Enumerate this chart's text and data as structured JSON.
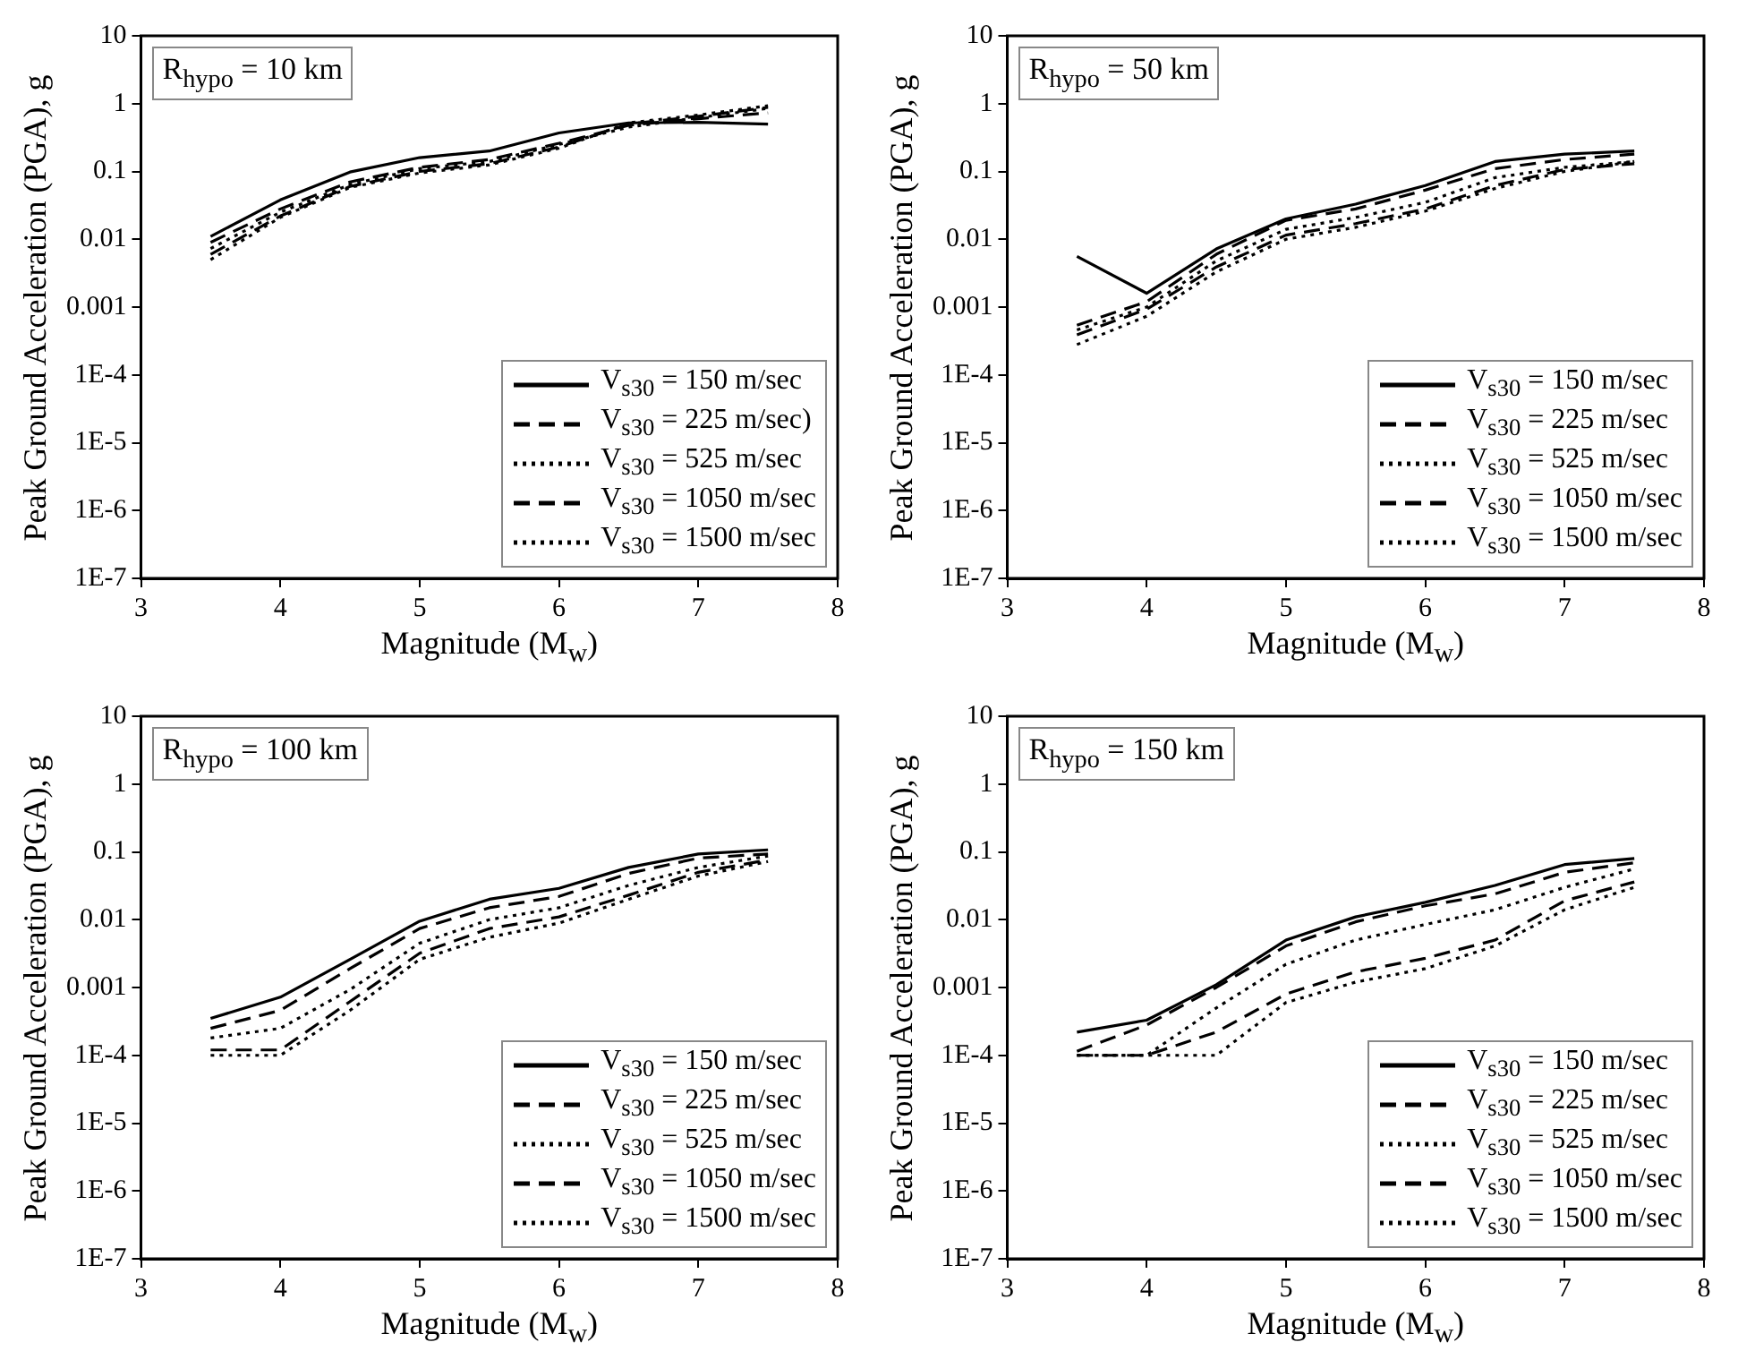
{
  "chart_data": [
    {
      "type": "line",
      "annotations": [
        "R$_{hypo}$ = 10 km"
      ],
      "xlabel": "Magnitude (M$_{w}$)",
      "ylabel": "Peak Ground Acceleration (PGA), g",
      "x": [
        3.5,
        4,
        4.5,
        5,
        5.5,
        6,
        6.5,
        7,
        7.5
      ],
      "xlim": [
        3,
        8
      ],
      "xticks": [
        3,
        4,
        5,
        6,
        7,
        8
      ],
      "log": "y",
      "ylim": [
        1e-07,
        10
      ],
      "yticks": [
        10,
        1,
        0.1,
        0.01,
        0.001,
        {
          "value": 0.0001,
          "label": "1E-4"
        },
        {
          "value": 1e-05,
          "label": "1E-5"
        },
        {
          "value": 1e-06,
          "label": "1E-6"
        },
        {
          "value": 1e-07,
          "label": "1E-7"
        }
      ],
      "grid": false,
      "legend": "bottom right",
      "marker": "none",
      "series": [
        {
          "name": "V$_{s30}$ = 150 m/sec",
          "color": "#000000",
          "line_style": "solid",
          "values": [
            0.011,
            0.038,
            0.098,
            0.16,
            0.2,
            0.37,
            0.52,
            0.53,
            0.5
          ]
        },
        {
          "name": "V$_{s30}$ = 225 m/sec)",
          "color": "#000000",
          "line_style": "dashed",
          "values": [
            0.009,
            0.028,
            0.07,
            0.115,
            0.15,
            0.26,
            0.48,
            0.6,
            0.73
          ]
        },
        {
          "name": "V$_{s30}$ = 525 m/sec",
          "color": "#000000",
          "line_style": "dotted",
          "values": [
            0.0073,
            0.025,
            0.064,
            0.11,
            0.14,
            0.25,
            0.45,
            0.62,
            0.85
          ]
        },
        {
          "name": "V$_{s30}$ = 1050 m/sec",
          "color": "#000000",
          "line_style": "dashed",
          "values": [
            0.006,
            0.022,
            0.06,
            0.1,
            0.13,
            0.23,
            0.5,
            0.65,
            0.88
          ]
        },
        {
          "name": "V$_{s30}$ = 1500 m/sec",
          "color": "#000000",
          "line_style": "dotted",
          "values": [
            0.005,
            0.021,
            0.058,
            0.095,
            0.125,
            0.22,
            0.52,
            0.68,
            0.93
          ]
        }
      ]
    },
    {
      "type": "line",
      "annotations": [
        "R$_{hypo}$ = 50 km"
      ],
      "xlabel": "Magnitude (M$_{w}$)",
      "ylabel": "Peak Ground Acceleration (PGA), g",
      "x": [
        3.5,
        4,
        4.5,
        5,
        5.5,
        6,
        6.5,
        7,
        7.5
      ],
      "xlim": [
        3,
        8
      ],
      "xticks": [
        3,
        4,
        5,
        6,
        7,
        8
      ],
      "log": "y",
      "ylim": [
        1e-07,
        10
      ],
      "yticks": [
        10,
        1,
        0.1,
        0.01,
        0.001,
        {
          "value": 0.0001,
          "label": "1E-4"
        },
        {
          "value": 1e-05,
          "label": "1E-5"
        },
        {
          "value": 1e-06,
          "label": "1E-6"
        },
        {
          "value": 1e-07,
          "label": "1E-7"
        }
      ],
      "grid": false,
      "legend": "bottom right",
      "marker": "none",
      "series": [
        {
          "name": "V$_{s30}$ = 150 m/sec",
          "color": "#000000",
          "line_style": "solid",
          "values": [
            0.0056,
            0.0016,
            0.0072,
            0.02,
            0.033,
            0.062,
            0.14,
            0.18,
            0.2
          ]
        },
        {
          "name": "V$_{s30}$ = 225 m/sec",
          "color": "#000000",
          "line_style": "dashed",
          "values": [
            0.00054,
            0.0012,
            0.006,
            0.019,
            0.028,
            0.053,
            0.11,
            0.15,
            0.18
          ]
        },
        {
          "name": "V$_{s30}$ = 525 m/sec",
          "color": "#000000",
          "line_style": "dotted",
          "values": [
            0.00046,
            0.001,
            0.0048,
            0.014,
            0.021,
            0.035,
            0.081,
            0.115,
            0.14
          ]
        },
        {
          "name": "V$_{s30}$ = 1050 m/sec",
          "color": "#000000",
          "line_style": "dashed",
          "values": [
            0.00039,
            0.00093,
            0.0039,
            0.0115,
            0.017,
            0.028,
            0.062,
            0.107,
            0.13
          ]
        },
        {
          "name": "V$_{s30}$ = 1500 m/sec",
          "color": "#000000",
          "line_style": "dotted",
          "values": [
            0.00028,
            0.00073,
            0.0033,
            0.01,
            0.015,
            0.026,
            0.056,
            0.1,
            0.14
          ]
        }
      ]
    },
    {
      "type": "line",
      "annotations": [
        "R$_{hypo}$ = 100 km"
      ],
      "xlabel": "Magnitude (M$_{w}$)",
      "ylabel": "Peak Ground Acceleration (PGA), g",
      "x": [
        3.5,
        4,
        4.5,
        5,
        5.5,
        6,
        6.5,
        7,
        7.5
      ],
      "xlim": [
        3,
        8
      ],
      "xticks": [
        3,
        4,
        5,
        6,
        7,
        8
      ],
      "log": "y",
      "ylim": [
        1e-07,
        10
      ],
      "yticks": [
        10,
        1,
        0.1,
        0.01,
        0.001,
        {
          "value": 0.0001,
          "label": "1E-4"
        },
        {
          "value": 1e-05,
          "label": "1E-5"
        },
        {
          "value": 1e-06,
          "label": "1E-6"
        },
        {
          "value": 1e-07,
          "label": "1E-7"
        }
      ],
      "grid": false,
      "legend": "bottom right",
      "marker": "none",
      "series": [
        {
          "name": "V$_{s30}$ = 150 m/sec",
          "color": "#000000",
          "line_style": "solid",
          "values": [
            0.00035,
            0.00072,
            0.0026,
            0.0095,
            0.02,
            0.029,
            0.059,
            0.093,
            0.107
          ]
        },
        {
          "name": "V$_{s30}$ = 225 m/sec",
          "color": "#000000",
          "line_style": "dashed",
          "values": [
            0.00025,
            0.00046,
            0.0019,
            0.0074,
            0.015,
            0.022,
            0.048,
            0.081,
            0.093
          ]
        },
        {
          "name": "V$_{s30}$ = 525 m/sec",
          "color": "#000000",
          "line_style": "dotted",
          "values": [
            0.00018,
            0.00025,
            0.00093,
            0.0045,
            0.01,
            0.015,
            0.032,
            0.059,
            0.087
          ]
        },
        {
          "name": "V$_{s30}$ = 1050 m/sec",
          "color": "#000000",
          "line_style": "dashed",
          "values": [
            0.00012,
            0.00012,
            0.00062,
            0.0032,
            0.0074,
            0.011,
            0.023,
            0.05,
            0.076
          ]
        },
        {
          "name": "V$_{s30}$ = 1500 m/sec",
          "color": "#000000",
          "line_style": "dotted",
          "values": [
            0.0001,
            0.0001,
            0.00046,
            0.0026,
            0.0055,
            0.0089,
            0.02,
            0.044,
            0.072
          ]
        }
      ]
    },
    {
      "type": "line",
      "annotations": [
        "R$_{hypo}$ = 150 km"
      ],
      "xlabel": "Magnitude (M$_{w}$)",
      "ylabel": "Peak Ground Acceleration (PGA), g",
      "x": [
        3.5,
        4,
        4.5,
        5,
        5.5,
        6,
        6.5,
        7,
        7.5
      ],
      "xlim": [
        3,
        8
      ],
      "xticks": [
        3,
        4,
        5,
        6,
        7,
        8
      ],
      "log": "y",
      "ylim": [
        1e-07,
        10
      ],
      "yticks": [
        10,
        1,
        0.1,
        0.01,
        0.001,
        {
          "value": 0.0001,
          "label": "1E-4"
        },
        {
          "value": 1e-05,
          "label": "1E-5"
        },
        {
          "value": 1e-06,
          "label": "1E-6"
        },
        {
          "value": 1e-07,
          "label": "1E-7"
        }
      ],
      "grid": false,
      "legend": "bottom right",
      "marker": "none",
      "series": [
        {
          "name": "V$_{s30}$ = 150 m/sec",
          "color": "#000000",
          "line_style": "solid",
          "values": [
            0.00022,
            0.00033,
            0.0011,
            0.005,
            0.011,
            0.018,
            0.032,
            0.065,
            0.08
          ]
        },
        {
          "name": "V$_{s30}$ = 225 m/sec",
          "color": "#000000",
          "line_style": "dashed",
          "values": [
            0.000115,
            0.00028,
            0.001,
            0.0041,
            0.0093,
            0.016,
            0.024,
            0.05,
            0.069
          ]
        },
        {
          "name": "V$_{s30}$ = 525 m/sec",
          "color": "#000000",
          "line_style": "dotted",
          "values": [
            0.0001,
            0.0001,
            0.0005,
            0.0022,
            0.005,
            0.0085,
            0.014,
            0.03,
            0.056
          ]
        },
        {
          "name": "V$_{s30}$ = 1050 m/sec",
          "color": "#000000",
          "line_style": "dashed",
          "values": [
            0.0001,
            0.0001,
            0.00022,
            0.0008,
            0.0017,
            0.0027,
            0.005,
            0.019,
            0.036
          ]
        },
        {
          "name": "V$_{s30}$ = 1500 m/sec",
          "color": "#000000",
          "line_style": "dotted",
          "values": [
            0.0001,
            0.0001,
            0.0001,
            0.0006,
            0.0012,
            0.0019,
            0.0041,
            0.014,
            0.03
          ]
        }
      ]
    }
  ]
}
